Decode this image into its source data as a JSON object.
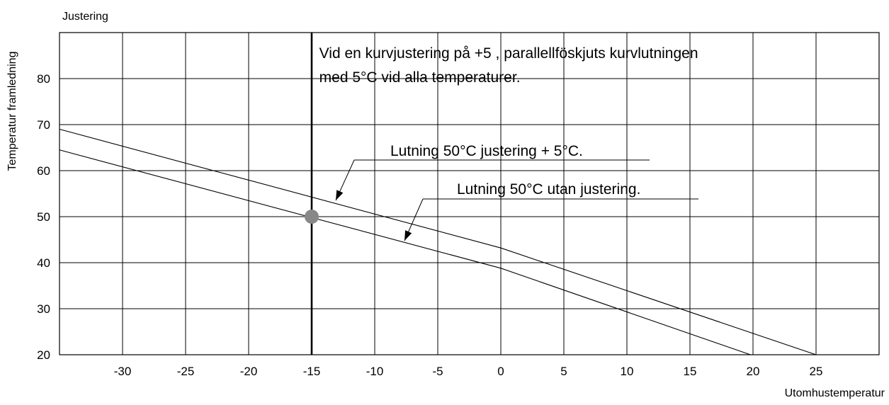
{
  "chart_data": {
    "type": "line",
    "title": "Justering",
    "xlabel": "Utomhustemperatur",
    "ylabel": "Temperatur framledning",
    "xlim": [
      -35,
      30
    ],
    "ylim": [
      20,
      90
    ],
    "x_ticks": [
      -30,
      -25,
      -20,
      -15,
      -10,
      -5,
      0,
      5,
      10,
      15,
      20,
      25
    ],
    "y_ticks": [
      20,
      30,
      40,
      50,
      60,
      70,
      80
    ],
    "grid": true,
    "series": [
      {
        "name": "Lutning 50°C justering + 5°C.",
        "x": [
          -35,
          0,
          25
        ],
        "y": [
          69,
          43.2,
          20
        ]
      },
      {
        "name": "Lutning 50°C utan justering.",
        "x": [
          -35,
          0,
          19.8
        ],
        "y": [
          64.5,
          38.8,
          20
        ]
      }
    ],
    "reference_line": {
      "x": -15
    },
    "marker": {
      "x": -15,
      "y": 50
    },
    "annotations": [
      {
        "text": "Vid en kurvjustering på +5 , parallellföskjuts kurvlutningen",
        "x": -14.4,
        "y": 84.5
      },
      {
        "text": "med 5°C vid alla temperaturer.",
        "x": -14.4,
        "y": 79.2
      }
    ]
  }
}
